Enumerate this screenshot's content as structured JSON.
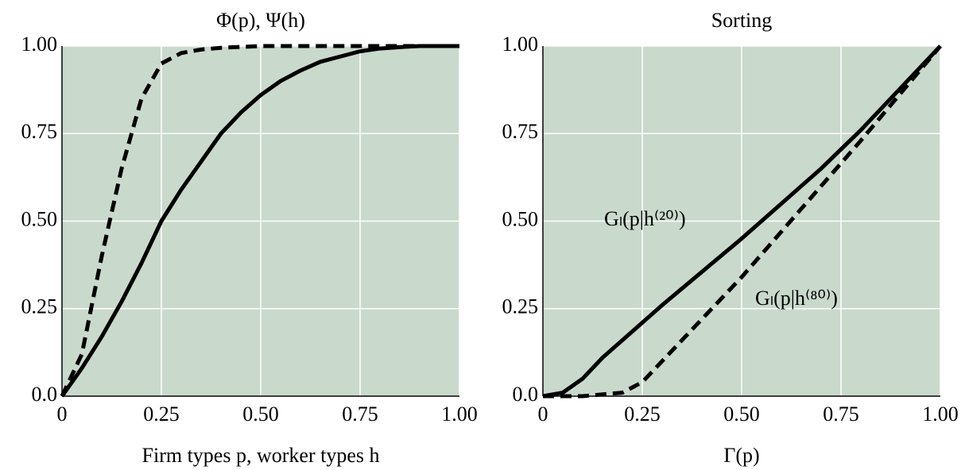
{
  "chart_data": [
    {
      "type": "line",
      "title": "Φ(p), Ψ(h)",
      "x_label": "Firm types p, worker types h",
      "xlim": [
        0,
        1
      ],
      "ylim": [
        0,
        1
      ],
      "xticks": [
        0,
        0.25,
        {
          "value": 0.5,
          "label": "0.50"
        },
        0.75,
        {
          "value": 1,
          "label": "1.00"
        }
      ],
      "yticks": [
        {
          "value": 0,
          "label": "0.0"
        },
        0.25,
        {
          "value": 0.5,
          "label": "0.50"
        },
        0.75,
        {
          "value": 1,
          "label": "1.00"
        }
      ],
      "grid": true,
      "background": "#c9d9cc",
      "series": [
        {
          "color": "#000000",
          "style": "solid",
          "x": [
            0,
            0.05,
            0.1,
            0.15,
            0.2,
            0.25,
            0.3,
            0.35,
            0.4,
            0.45,
            0.5,
            0.55,
            0.6,
            0.65,
            0.7,
            0.75,
            0.8,
            0.85,
            0.9,
            1
          ],
          "values": [
            0,
            0.08,
            0.17,
            0.27,
            0.38,
            0.5,
            0.59,
            0.67,
            0.75,
            0.81,
            0.86,
            0.9,
            0.93,
            0.955,
            0.97,
            0.985,
            0.993,
            0.997,
            1,
            1
          ]
        },
        {
          "color": "#000000",
          "style": "dashed",
          "x": [
            0,
            0.05,
            0.1,
            0.15,
            0.2,
            0.25,
            0.3,
            0.35,
            0.4,
            0.5,
            1
          ],
          "values": [
            0,
            0.12,
            0.4,
            0.65,
            0.85,
            0.95,
            0.98,
            0.99,
            0.995,
            1,
            1
          ]
        }
      ]
    },
    {
      "type": "line",
      "title": "Sorting",
      "x_label": "Γ(p)",
      "xlim": [
        0,
        1
      ],
      "ylim": [
        0,
        1
      ],
      "xticks": [
        0,
        0.25,
        {
          "value": 0.5,
          "label": "0.50"
        },
        0.75,
        {
          "value": 1,
          "label": "1.00"
        }
      ],
      "yticks": [
        {
          "value": 0,
          "label": "0.0"
        },
        0.25,
        {
          "value": 0.5,
          "label": "0.50"
        },
        0.75,
        {
          "value": 1,
          "label": "1.00"
        }
      ],
      "grid": true,
      "background": "#c9d9cc",
      "annotations": [
        "Gₗ(p|h⁽²⁰⁾)",
        "Gₗ(p|h⁽⁸⁰⁾)"
      ],
      "series": [
        {
          "color": "#000000",
          "style": "solid",
          "x": [
            0,
            0.05,
            0.1,
            0.15,
            0.2,
            0.3,
            0.4,
            0.5,
            0.6,
            0.7,
            0.8,
            0.9,
            1
          ],
          "values": [
            0,
            0.01,
            0.05,
            0.11,
            0.16,
            0.26,
            0.355,
            0.45,
            0.55,
            0.65,
            0.76,
            0.88,
            1
          ]
        },
        {
          "color": "#000000",
          "style": "dashed",
          "x": [
            0,
            0.1,
            0.15,
            0.2,
            0.25,
            0.3,
            0.4,
            0.5,
            0.6,
            0.7,
            0.8,
            0.9,
            1
          ],
          "values": [
            0,
            0,
            0.005,
            0.01,
            0.04,
            0.1,
            0.22,
            0.34,
            0.47,
            0.6,
            0.73,
            0.865,
            1
          ]
        }
      ]
    }
  ]
}
